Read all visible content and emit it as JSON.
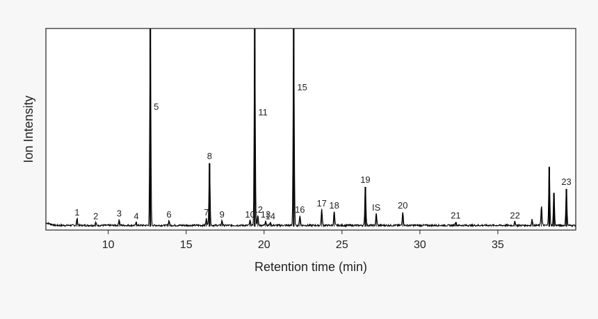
{
  "chart_data": {
    "type": "line",
    "title": "",
    "xlabel": "Retention time (min)",
    "ylabel": "Ion Intensity",
    "xlim": [
      6,
      40
    ],
    "ylim": [
      0,
      100
    ],
    "grid": false,
    "legend": "none",
    "x_ticks": [
      10,
      15,
      20,
      25,
      30,
      35
    ],
    "y_ticks": [],
    "series": [
      {
        "color": "#000000",
        "peaks": [
          {
            "label": "1",
            "x": 8.0,
            "y": 3.5
          },
          {
            "label": "2",
            "x": 9.2,
            "y": 1.5
          },
          {
            "label": "3",
            "x": 10.7,
            "y": 3.0
          },
          {
            "label": "4",
            "x": 11.8,
            "y": 1.5
          },
          {
            "label": "5",
            "x": 12.7,
            "y": 100
          },
          {
            "label": "6",
            "x": 13.9,
            "y": 2.5
          },
          {
            "label": "7",
            "x": 16.3,
            "y": 3.5
          },
          {
            "label": "8",
            "x": 16.5,
            "y": 32
          },
          {
            "label": "9",
            "x": 17.3,
            "y": 2.5
          },
          {
            "label": "10",
            "x": 19.1,
            "y": 2.5
          },
          {
            "label": "11",
            "x": 19.4,
            "y": 100
          },
          {
            "label": "12",
            "x": 19.6,
            "y": 5
          },
          {
            "label": "13",
            "x": 20.1,
            "y": 2.5
          },
          {
            "label": "14",
            "x": 20.4,
            "y": 1.5
          },
          {
            "label": "15",
            "x": 21.9,
            "y": 100
          },
          {
            "label": "16",
            "x": 22.3,
            "y": 5
          },
          {
            "label": "17",
            "x": 23.7,
            "y": 8
          },
          {
            "label": "18",
            "x": 24.5,
            "y": 7
          },
          {
            "label": "19",
            "x": 26.5,
            "y": 20
          },
          {
            "label": "IS",
            "x": 27.2,
            "y": 6
          },
          {
            "label": "20",
            "x": 28.9,
            "y": 7
          },
          {
            "label": "21",
            "x": 32.3,
            "y": 2
          },
          {
            "label": "22",
            "x": 36.1,
            "y": 2
          },
          {
            "label": "",
            "x": 37.2,
            "y": 3
          },
          {
            "label": "",
            "x": 37.8,
            "y": 10
          },
          {
            "label": "",
            "x": 38.3,
            "y": 30
          },
          {
            "label": "",
            "x": 38.6,
            "y": 17
          },
          {
            "label": "23",
            "x": 39.4,
            "y": 19
          }
        ]
      }
    ]
  }
}
